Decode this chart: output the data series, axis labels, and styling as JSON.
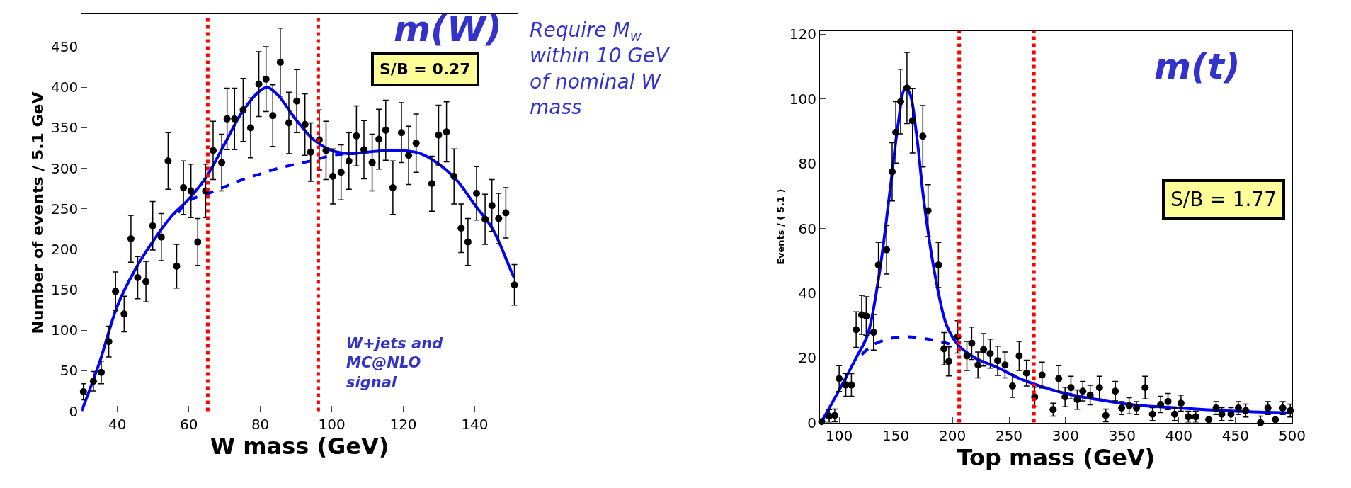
{
  "chart_data": [
    {
      "type": "scatter",
      "title": "m(W)",
      "xlabel": "W mass (GeV)",
      "ylabel": "Number of events / 5.1 GeV",
      "xlim": [
        30,
        152
      ],
      "ylim": [
        0,
        490
      ],
      "xticks": [
        40,
        60,
        80,
        100,
        120,
        140
      ],
      "yticks": [
        0,
        50,
        100,
        150,
        200,
        250,
        300,
        350,
        400,
        450
      ],
      "series": [
        {
          "marker": "circle",
          "color": "#000000",
          "x": [
            30.5,
            33.3,
            35.5,
            37.6,
            39.5,
            41.9,
            43.8,
            45.7,
            48.0,
            49.9,
            52.3,
            54.2,
            56.6,
            58.5,
            60.6,
            62.5,
            64.7,
            66.8,
            69.2,
            70.7,
            72.8,
            75.2,
            77.3,
            79.6,
            81.6,
            83.5,
            85.6,
            88.0,
            90.2,
            92.5,
            94.1,
            96.5,
            98.4,
            100.3,
            102.6,
            104.8,
            106.9,
            109.0,
            111.3,
            113.2,
            115.1,
            117.1,
            119.5,
            121.5,
            123.6,
            128.0,
            129.9,
            132.1,
            134.2,
            136.2,
            138.1,
            140.5,
            142.9,
            144.8,
            146.7,
            148.7,
            151.1
          ],
          "values": [
            24,
            37,
            48,
            86,
            148,
            120,
            213,
            165,
            160,
            229,
            215,
            309,
            179,
            276,
            272,
            209,
            272,
            322,
            307,
            361,
            361,
            372,
            350,
            404,
            410,
            365,
            431,
            356,
            383,
            354,
            320,
            335,
            322,
            290,
            295,
            309,
            340,
            323,
            307,
            336,
            347,
            276,
            344,
            316,
            331,
            281,
            341,
            345,
            290,
            226,
            209,
            269,
            237,
            254,
            238,
            245,
            156
          ],
          "errors": [
            10,
            12,
            14,
            19,
            24,
            22,
            29,
            26,
            25,
            30,
            29,
            35,
            27,
            33,
            33,
            29,
            33,
            36,
            35,
            38,
            38,
            39,
            37,
            40,
            40,
            38,
            42,
            38,
            39,
            38,
            36,
            37,
            36,
            34,
            34,
            35,
            37,
            36,
            35,
            37,
            37,
            33,
            37,
            36,
            36,
            34,
            37,
            37,
            34,
            30,
            29,
            33,
            31,
            32,
            31,
            31,
            25
          ]
        },
        {
          "type": "line",
          "color": "#0000ff",
          "x": [
            30,
            35,
            40,
            45,
            50,
            55,
            60,
            65,
            70,
            75,
            80,
            82,
            85,
            90,
            95,
            100,
            105,
            110,
            115,
            120,
            125,
            130,
            135,
            140,
            145,
            150,
            151
          ],
          "values": [
            0,
            60,
            130,
            175,
            210,
            240,
            262,
            290,
            330,
            370,
            396,
            400,
            390,
            360,
            335,
            322,
            318,
            320,
            322,
            322,
            318,
            305,
            285,
            255,
            225,
            175,
            165
          ]
        },
        {
          "type": "line",
          "color": "#0000ff",
          "line_style": "dashed",
          "x": [
            57,
            60,
            65,
            70,
            75,
            80,
            85,
            90,
            95,
            100,
            105
          ],
          "values": [
            245,
            260,
            268,
            277,
            286,
            293,
            300,
            305,
            310,
            316,
            318
          ]
        }
      ],
      "ref_lines": [
        {
          "axis": "x",
          "value": 65.3,
          "color": "#ff0000",
          "line_style": "dotted"
        },
        {
          "axis": "x",
          "value": 96.2,
          "color": "#ff0000",
          "line_style": "dotted"
        }
      ],
      "annotations": [
        "S/B = 0.27",
        "W+jets and MC@NLO signal",
        "Require M$_{w}$ within 10 GeV of nominal W mass"
      ]
    },
    {
      "type": "scatter",
      "title": "m(t)",
      "xlabel": "Top mass (GeV)",
      "ylabel": "Events / ( 5.1 )",
      "xlim": [
        83,
        500
      ],
      "ylim": [
        0,
        121
      ],
      "xticks": [
        100,
        150,
        200,
        250,
        300,
        350,
        400,
        450,
        500
      ],
      "yticks": [
        0,
        20,
        40,
        60,
        80,
        100,
        120
      ],
      "series": [
        {
          "marker": "circle",
          "color": "#000000",
          "x": [
            84.6,
            91.2,
            96.1,
            100,
            105.9,
            110.8,
            115,
            119.9,
            123.9,
            130.4,
            134.7,
            141.9,
            146.8,
            150,
            154.3,
            159.9,
            164.8,
            173.9,
            178.5,
            187.7,
            192.6,
            196.8,
            204.7,
            212.8,
            217.1,
            222.6,
            227.6,
            233.4,
            240,
            246.5,
            253.1,
            259,
            265.5,
            272.7,
            279.2,
            289,
            293.9,
            299.5,
            304.7,
            310.3,
            315.2,
            321.7,
            329.9,
            335.5,
            343.9,
            349.5,
            356.1,
            362.6,
            370.2,
            376.7,
            383.9,
            390.4,
            396.3,
            401.9,
            408.4,
            414.9,
            426.4,
            432.9,
            437.9,
            446,
            452.6,
            459.1,
            472.2,
            478.7,
            485.3,
            491.8,
            498.4
          ],
          "values": [
            0.3,
            2,
            2.2,
            13.6,
            11.6,
            11.6,
            28.7,
            33.3,
            32.9,
            27.9,
            48.7,
            53.4,
            77.5,
            89.7,
            99.2,
            103.4,
            93.3,
            88.5,
            65.5,
            48.7,
            22.8,
            18.9,
            26.5,
            20.6,
            24.5,
            17.8,
            22.5,
            21.3,
            19.1,
            17.8,
            11.3,
            20.6,
            15.3,
            7.9,
            14.7,
            4,
            13.6,
            7.9,
            10.8,
            7.1,
            9.7,
            8.5,
            10.8,
            2.2,
            9.7,
            4.5,
            5.2,
            4.5,
            10.8,
            2.6,
            5.6,
            6.5,
            2.6,
            6,
            1.8,
            1.8,
            0.9,
            4.5,
            2.6,
            2.6,
            4.5,
            3.7,
            0,
            4.5,
            0.9,
            4.5,
            3.7
          ],
          "errors": [
            0.3,
            2,
            2,
            4,
            3.5,
            3.5,
            5.5,
            6,
            6,
            5.5,
            7,
            7.5,
            9,
            9.5,
            10,
            11,
            10,
            9.5,
            8,
            7,
            5,
            4.5,
            5,
            4.5,
            5,
            4,
            5,
            4.5,
            4.5,
            4,
            3.5,
            4.5,
            4,
            3,
            4,
            2,
            4,
            3,
            3.5,
            3,
            3,
            3,
            3.5,
            2,
            3,
            2,
            2.5,
            2,
            3.5,
            2,
            2.5,
            2.5,
            2,
            2.5,
            [
              0,
              3.5
            ],
            [
              0,
              3.5
            ],
            null,
            2,
            2,
            2,
            2,
            2,
            [
              0,
              2
            ],
            2,
            null,
            2,
            2
          ]
        },
        {
          "type": "line",
          "color": "#0000ff",
          "x": [
            84,
            100,
            115,
            125,
            135,
            145,
            152,
            158,
            162,
            168,
            175,
            185,
            195,
            205,
            220,
            240,
            260,
            280,
            300,
            330,
            360,
            400,
            450,
            500
          ],
          "values": [
            0,
            10,
            20,
            27,
            45,
            72,
            92,
            103,
            102,
            90,
            68,
            45,
            30,
            24,
            20,
            17,
            13.5,
            11,
            9,
            7,
            5.5,
            4.5,
            3.5,
            3
          ]
        },
        {
          "type": "line",
          "color": "#0000ff",
          "line_style": "dashed",
          "x": [
            120,
            130,
            145,
            160,
            175,
            190,
            200
          ],
          "values": [
            21,
            24,
            26,
            26.5,
            26,
            25,
            24
          ]
        }
      ],
      "ref_lines": [
        {
          "axis": "x",
          "value": 206,
          "color": "#ff0000",
          "line_style": "dotted"
        },
        {
          "axis": "x",
          "value": 272,
          "color": "#ff0000",
          "line_style": "dotted"
        }
      ],
      "annotations": [
        "S/B = 1.77"
      ]
    }
  ]
}
